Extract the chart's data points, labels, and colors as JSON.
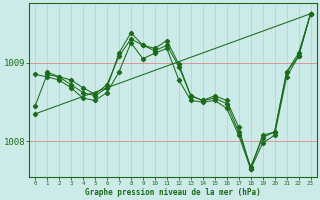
{
  "background_color": "#cceae7",
  "grid_color_v": "#aad4d0",
  "grid_color_h": "#dd8888",
  "line_color": "#1a6b1a",
  "xlabel": "Graphe pression niveau de la mer (hPa)",
  "xlim": [
    -0.5,
    23.5
  ],
  "ylim": [
    1007.55,
    1009.75
  ],
  "series": [
    {
      "x": [
        0,
        1,
        2,
        3,
        4,
        5,
        6,
        7,
        8,
        9,
        10,
        11,
        12,
        13,
        14,
        15,
        16,
        17,
        18,
        19,
        20,
        21,
        22,
        23
      ],
      "y": [
        1008.45,
        1008.85,
        1008.82,
        1008.78,
        1008.68,
        1008.6,
        1008.72,
        1009.08,
        1009.3,
        1009.22,
        1009.15,
        1009.22,
        1008.95,
        1008.58,
        1008.52,
        1008.55,
        1008.48,
        1008.12,
        1007.68,
        1008.05,
        1008.12,
        1008.88,
        1009.08,
        1009.62
      ]
    },
    {
      "x": [
        0,
        1,
        2,
        3,
        4,
        5,
        6,
        7,
        8,
        9,
        10,
        11,
        12,
        13,
        14,
        15,
        16,
        17,
        18,
        19,
        20,
        21,
        22,
        23
      ],
      "y": [
        1008.85,
        1008.82,
        1008.78,
        1008.68,
        1008.55,
        1008.52,
        1008.62,
        1008.88,
        1009.25,
        1009.05,
        1009.12,
        1009.18,
        1008.78,
        1008.52,
        1008.5,
        1008.52,
        1008.42,
        1008.08,
        1007.65,
        1007.98,
        1008.08,
        1008.82,
        1009.08,
        1009.62
      ]
    },
    {
      "x": [
        1,
        2,
        3,
        4,
        5,
        6,
        7,
        8,
        9,
        10,
        11,
        12,
        13,
        14,
        15,
        16,
        17,
        18,
        19,
        20,
        21,
        22,
        23
      ],
      "y": [
        1008.88,
        1008.82,
        1008.72,
        1008.62,
        1008.58,
        1008.68,
        1009.12,
        1009.38,
        1009.22,
        1009.18,
        1009.28,
        1008.98,
        1008.58,
        1008.52,
        1008.58,
        1008.52,
        1008.18,
        1007.65,
        1008.08,
        1008.12,
        1008.88,
        1009.12,
        1009.62
      ]
    },
    {
      "x": [
        0,
        23
      ],
      "y": [
        1008.35,
        1009.62
      ]
    }
  ],
  "xticks": [
    0,
    1,
    2,
    3,
    4,
    5,
    6,
    7,
    8,
    9,
    10,
    11,
    12,
    13,
    14,
    15,
    16,
    17,
    18,
    19,
    20,
    21,
    22,
    23
  ],
  "yticks": [
    1008,
    1009
  ]
}
